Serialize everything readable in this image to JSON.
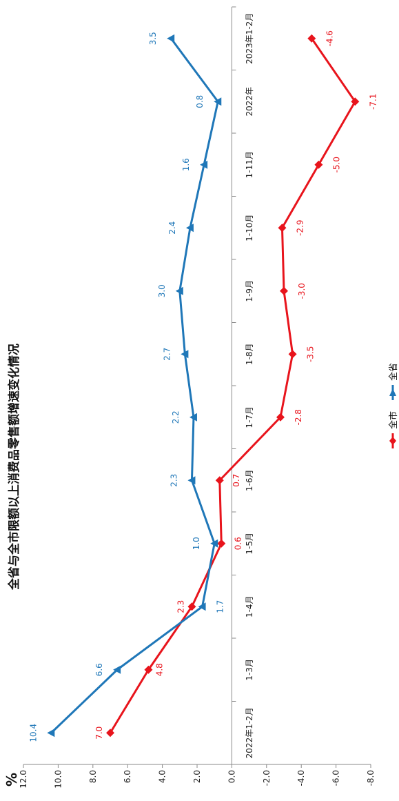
{
  "chart_data": {
    "type": "line",
    "title": "全省与全市限额以上消费品零售额增速变化情况",
    "ylabel": "%",
    "categories": [
      "2022年1-2月",
      "1-3月",
      "1-4月",
      "1-5月",
      "1-6月",
      "1-7月",
      "1-8月",
      "1-9月",
      "1-10月",
      "1-11月",
      "2022年",
      "2023年1-2月"
    ],
    "ylim": [
      -8.0,
      12.0
    ],
    "yticks": [
      "12.0",
      "10.0",
      "8.0",
      "6.0",
      "4.0",
      "2.0",
      "0.0",
      "-2.0",
      "-4.0",
      "-6.0",
      "-8.0"
    ],
    "series": [
      {
        "name": "全市",
        "color": "#e8141c",
        "marker": "diamond",
        "values": [
          7.0,
          4.8,
          2.3,
          0.6,
          0.7,
          -2.8,
          -3.5,
          -3.0,
          -2.9,
          -5.0,
          -7.1,
          -4.6
        ],
        "labels": [
          "7.0",
          "4.8",
          "2.3",
          "0.6",
          "0.7",
          "-2.8",
          "-3.5",
          "-3.0",
          "-2.9",
          "-5.0",
          "-7.1",
          "-4.6"
        ]
      },
      {
        "name": "全省",
        "color": "#1f77b8",
        "marker": "triangle",
        "values": [
          10.4,
          6.6,
          1.7,
          1.0,
          2.3,
          2.2,
          2.7,
          3.0,
          2.4,
          1.6,
          0.8,
          3.5
        ],
        "labels": [
          "10.4",
          "6.6",
          "1.7",
          "1.0",
          "2.3",
          "2.2",
          "2.7",
          "3.0",
          "2.4",
          "1.6",
          "0.8",
          "3.5"
        ]
      }
    ],
    "legend_position": "bottom",
    "grid": false
  }
}
